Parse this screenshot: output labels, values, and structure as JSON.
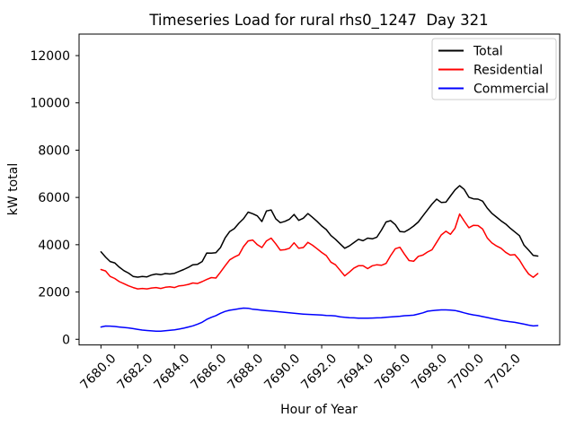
{
  "chart_data": {
    "type": "line",
    "title": "Timeseries Load for rural rhs0_1247  Day 321",
    "xlabel": "Hour of Year",
    "ylabel": "kW total",
    "grid": false,
    "legend_position": "upper right",
    "x_start": 7680.0,
    "x_step": 0.25,
    "xlim": [
      7678.81,
      7704.94
    ],
    "ylim": [
      -240,
      12910
    ],
    "x_ticks": [
      7680,
      7682,
      7684,
      7686,
      7688,
      7690,
      7692,
      7694,
      7696,
      7698,
      7700,
      7702
    ],
    "x_tick_labels": [
      "7680.0",
      "7682.0",
      "7684.0",
      "7686.0",
      "7688.0",
      "7690.0",
      "7692.0",
      "7694.0",
      "7696.0",
      "7698.0",
      "7700.0",
      "7702.0"
    ],
    "y_ticks": [
      0,
      2000,
      4000,
      6000,
      8000,
      10000,
      12000
    ],
    "y_tick_labels": [
      "0",
      "2000",
      "4000",
      "6000",
      "8000",
      "10000",
      "12000"
    ],
    "series": [
      {
        "name": "Total",
        "color": "#000000",
        "values": [
          3700,
          3480,
          3290,
          3230,
          3050,
          2900,
          2800,
          2660,
          2630,
          2660,
          2640,
          2720,
          2760,
          2730,
          2780,
          2760,
          2790,
          2870,
          2950,
          3040,
          3150,
          3170,
          3290,
          3650,
          3640,
          3660,
          3880,
          4290,
          4560,
          4680,
          4910,
          5100,
          5380,
          5310,
          5220,
          4980,
          5430,
          5470,
          5100,
          4930,
          4990,
          5080,
          5280,
          5030,
          5120,
          5320,
          5160,
          4990,
          4790,
          4640,
          4390,
          4230,
          4040,
          3850,
          3950,
          4090,
          4230,
          4170,
          4280,
          4250,
          4320,
          4620,
          4960,
          5020,
          4850,
          4560,
          4540,
          4650,
          4790,
          4960,
          5220,
          5470,
          5720,
          5930,
          5790,
          5800,
          6060,
          6320,
          6500,
          6340,
          6010,
          5940,
          5930,
          5840,
          5550,
          5330,
          5170,
          5010,
          4880,
          4700,
          4540,
          4380,
          3980,
          3770,
          3550,
          3520
        ]
      },
      {
        "name": "Residential",
        "color": "#ff0000",
        "values": [
          2950,
          2890,
          2660,
          2570,
          2440,
          2350,
          2260,
          2190,
          2130,
          2150,
          2130,
          2170,
          2190,
          2150,
          2200,
          2220,
          2190,
          2260,
          2280,
          2320,
          2380,
          2360,
          2440,
          2530,
          2610,
          2590,
          2840,
          3110,
          3360,
          3480,
          3570,
          3920,
          4160,
          4200,
          4000,
          3880,
          4160,
          4280,
          4040,
          3770,
          3790,
          3850,
          4080,
          3850,
          3880,
          4100,
          3980,
          3830,
          3670,
          3540,
          3260,
          3150,
          2920,
          2680,
          2840,
          3010,
          3110,
          3110,
          2990,
          3110,
          3150,
          3130,
          3210,
          3540,
          3830,
          3890,
          3600,
          3330,
          3300,
          3510,
          3560,
          3690,
          3790,
          4100,
          4410,
          4570,
          4440,
          4700,
          5300,
          5000,
          4720,
          4820,
          4810,
          4660,
          4290,
          4080,
          3950,
          3850,
          3680,
          3560,
          3580,
          3350,
          3030,
          2760,
          2620,
          2780
        ]
      },
      {
        "name": "Commercial",
        "color": "#0000ff",
        "values": [
          520,
          560,
          555,
          540,
          520,
          500,
          480,
          450,
          420,
          390,
          370,
          355,
          340,
          345,
          360,
          380,
          400,
          430,
          470,
          520,
          570,
          640,
          720,
          840,
          930,
          1000,
          1100,
          1180,
          1230,
          1260,
          1290,
          1320,
          1310,
          1270,
          1250,
          1230,
          1210,
          1195,
          1180,
          1160,
          1140,
          1120,
          1100,
          1080,
          1065,
          1055,
          1045,
          1035,
          1025,
          1010,
          1000,
          985,
          950,
          930,
          915,
          905,
          895,
          895,
          895,
          900,
          905,
          915,
          930,
          945,
          960,
          975,
          995,
          1010,
          1020,
          1070,
          1120,
          1185,
          1210,
          1230,
          1245,
          1245,
          1235,
          1215,
          1170,
          1120,
          1070,
          1030,
          1000,
          960,
          920,
          880,
          840,
          800,
          770,
          740,
          715,
          680,
          640,
          600,
          565,
          580
        ]
      }
    ]
  }
}
